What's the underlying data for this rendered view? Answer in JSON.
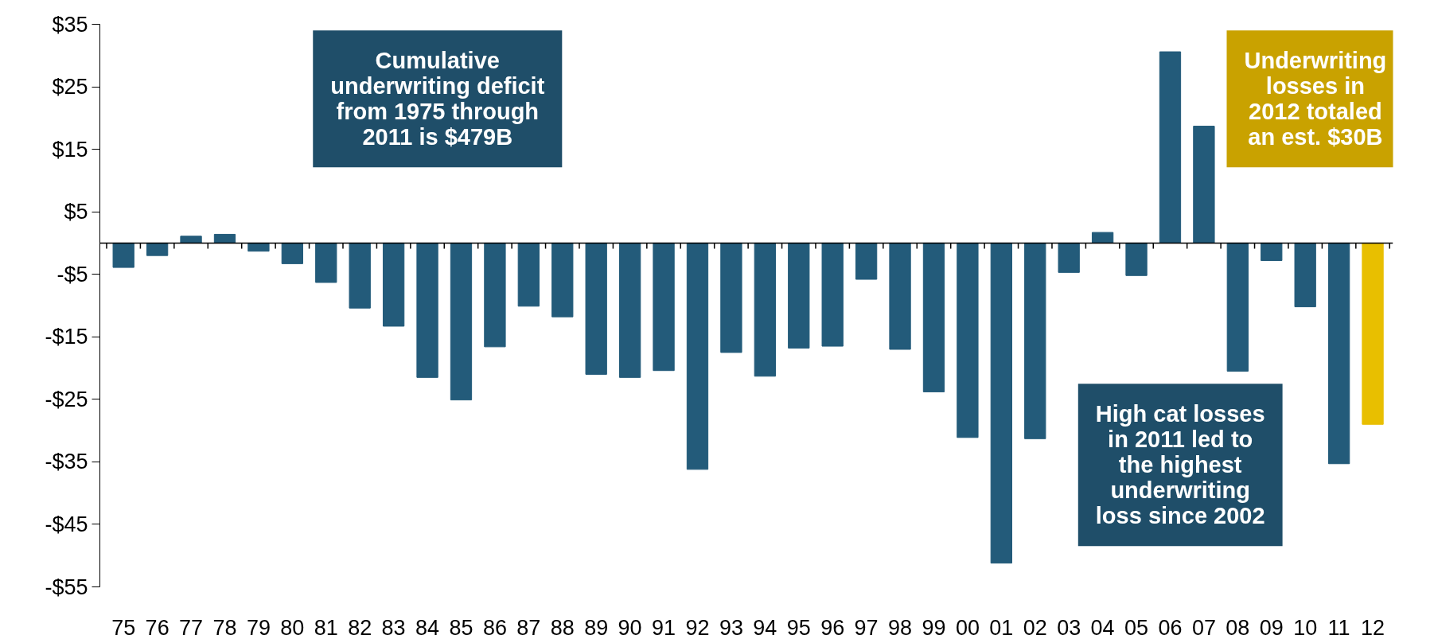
{
  "chart_data": {
    "type": "bar",
    "categories": [
      "75",
      "76",
      "77",
      "78",
      "79",
      "80",
      "81",
      "82",
      "83",
      "84",
      "85",
      "86",
      "87",
      "88",
      "89",
      "90",
      "91",
      "92",
      "93",
      "94",
      "95",
      "96",
      "97",
      "98",
      "99",
      "00",
      "01",
      "02",
      "03",
      "04",
      "05",
      "06",
      "07",
      "08",
      "09",
      "10",
      "11",
      "12"
    ],
    "values": [
      -3.9,
      -2.0,
      1.1,
      1.4,
      -1.3,
      -3.3,
      -6.3,
      -10.4,
      -13.3,
      -21.5,
      -25.1,
      -16.6,
      -10.1,
      -11.8,
      -21.0,
      -21.5,
      -20.4,
      -36.2,
      -17.5,
      -21.3,
      -16.8,
      -16.5,
      -5.8,
      -17.0,
      -23.8,
      -31.1,
      -51.2,
      -31.3,
      -4.7,
      1.7,
      -5.2,
      30.6,
      18.7,
      -20.5,
      -2.8,
      -10.2,
      -35.3,
      -29.0
    ],
    "colors": [
      "#235b7a",
      "#235b7a",
      "#235b7a",
      "#235b7a",
      "#235b7a",
      "#235b7a",
      "#235b7a",
      "#235b7a",
      "#235b7a",
      "#235b7a",
      "#235b7a",
      "#235b7a",
      "#235b7a",
      "#235b7a",
      "#235b7a",
      "#235b7a",
      "#235b7a",
      "#235b7a",
      "#235b7a",
      "#235b7a",
      "#235b7a",
      "#235b7a",
      "#235b7a",
      "#235b7a",
      "#235b7a",
      "#235b7a",
      "#235b7a",
      "#235b7a",
      "#235b7a",
      "#235b7a",
      "#235b7a",
      "#235b7a",
      "#235b7a",
      "#235b7a",
      "#235b7a",
      "#235b7a",
      "#235b7a",
      "#e8bf00"
    ],
    "ylim": [
      -55,
      35
    ],
    "yticks": [
      {
        "value": -55,
        "label": "-$55"
      },
      {
        "value": -45,
        "label": "-$45"
      },
      {
        "value": -35,
        "label": "-$35"
      },
      {
        "value": -25,
        "label": "-$25"
      },
      {
        "value": -15,
        "label": "-$15"
      },
      {
        "value": -5,
        "label": "-$5"
      },
      {
        "value": 5,
        "label": "$5"
      },
      {
        "value": 15,
        "label": "$15"
      },
      {
        "value": 25,
        "label": "$25"
      },
      {
        "value": 35,
        "label": "$35"
      }
    ],
    "grid": false,
    "annotations": [
      "Cumulative underwriting deficit from 1975 through 2011 is $479B",
      "Underwriting losses in 2012 totaled an est. $30B",
      "High cat losses in 2011 led to the highest underwriting loss since 2002"
    ]
  }
}
